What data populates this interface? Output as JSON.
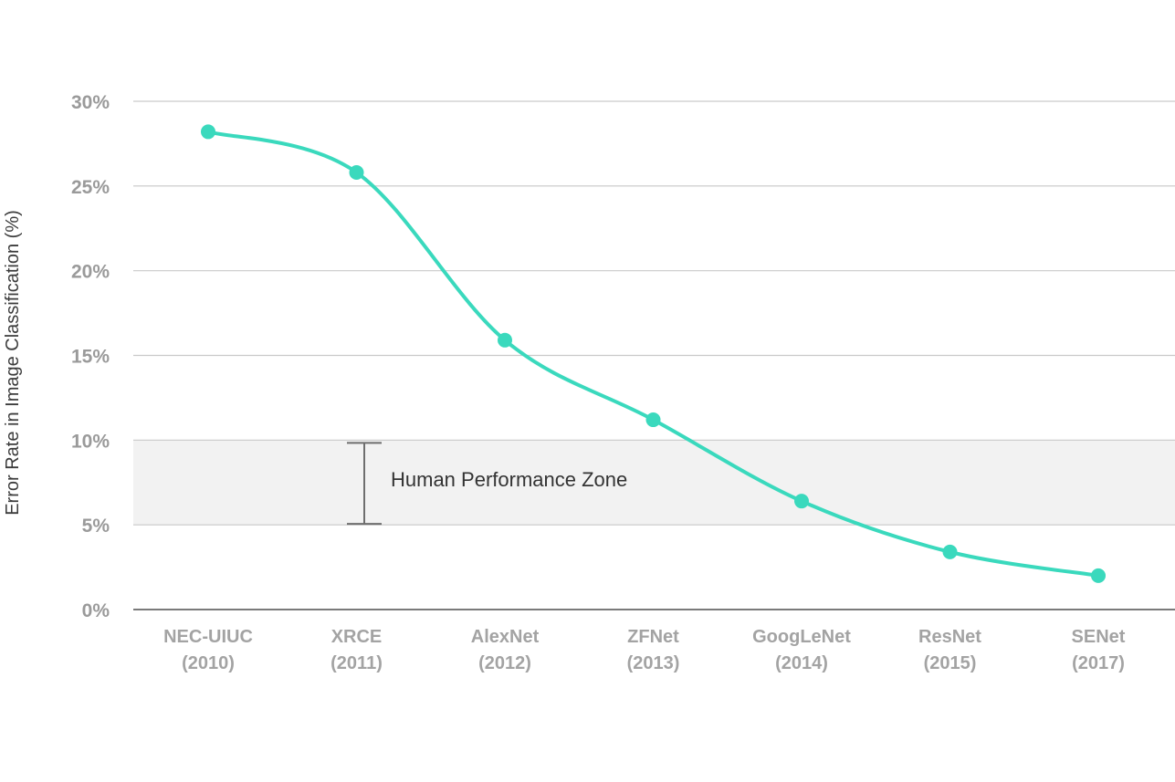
{
  "chart_data": {
    "type": "line",
    "ylabel": "Error Rate in Image Classification (%)",
    "xlabel": "",
    "categories": [
      {
        "name": "NEC-UIUC",
        "year": "(2010)"
      },
      {
        "name": "XRCE",
        "year": "(2011)"
      },
      {
        "name": "AlexNet",
        "year": "(2012)"
      },
      {
        "name": "ZFNet",
        "year": "(2013)"
      },
      {
        "name": "GoogLeNet",
        "year": "(2014)"
      },
      {
        "name": "ResNet",
        "year": "(2015)"
      },
      {
        "name": "SENet",
        "year": "(2017)"
      }
    ],
    "values": [
      28.2,
      25.8,
      15.9,
      11.2,
      6.4,
      3.4,
      2.0
    ],
    "ylim": [
      0,
      30
    ],
    "yticks": [
      0,
      5,
      10,
      15,
      20,
      25,
      30
    ],
    "ytick_labels": [
      "0%",
      "5%",
      "10%",
      "15%",
      "20%",
      "25%",
      "30%"
    ],
    "grid": true,
    "line_color": "#3ad9bd",
    "zone": {
      "label": "Human Performance Zone",
      "range": [
        5,
        10
      ],
      "fill_color": "#f2f2f2",
      "bracket_color": "#6e6e6e"
    }
  }
}
